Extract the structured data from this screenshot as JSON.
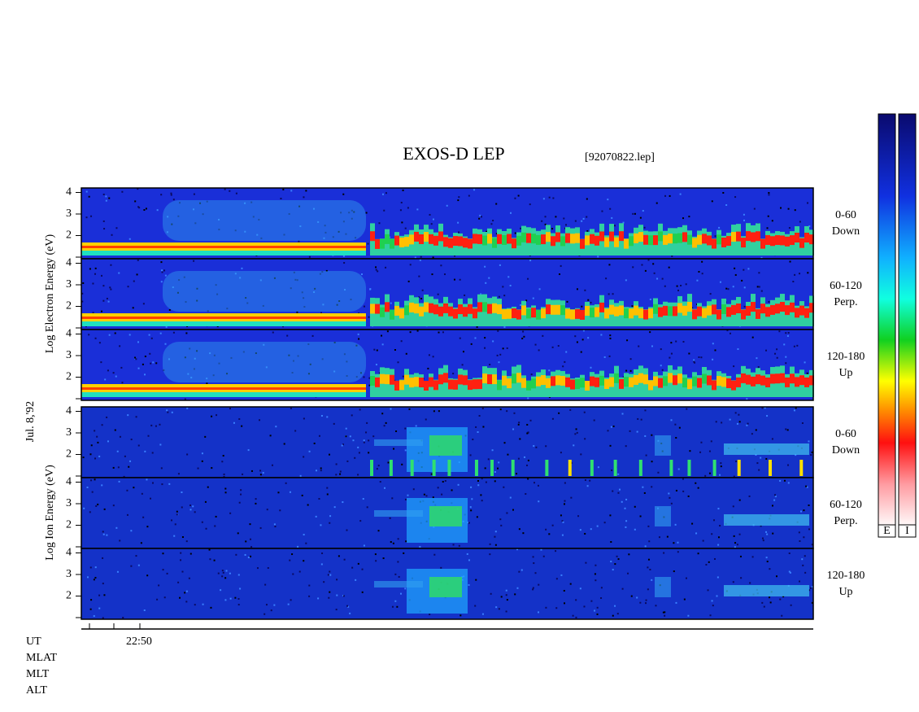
{
  "title": "EXOS-D LEP",
  "file": "[92070822.lep]",
  "date": "Jul. 8,'92",
  "groups": [
    {
      "ylabel": "Log  Electron  Energy (eV)",
      "panels": [
        {
          "range": "0-60",
          "dir": "Down"
        },
        {
          "range": "60-120",
          "dir": "Perp."
        },
        {
          "range": "120-180",
          "dir": "Up"
        }
      ]
    },
    {
      "ylabel": "Log  Ion  Energy (eV)",
      "panels": [
        {
          "range": "0-60",
          "dir": "Down"
        },
        {
          "range": "60-120",
          "dir": "Perp."
        },
        {
          "range": "120-180",
          "dir": "Up"
        }
      ]
    }
  ],
  "yticks": [
    2,
    3,
    4
  ],
  "time_label": "22:50",
  "row_labels": [
    "UT",
    "MLAT",
    "MLT",
    "ALT"
  ],
  "colorbars": [
    "E",
    "I"
  ]
}
